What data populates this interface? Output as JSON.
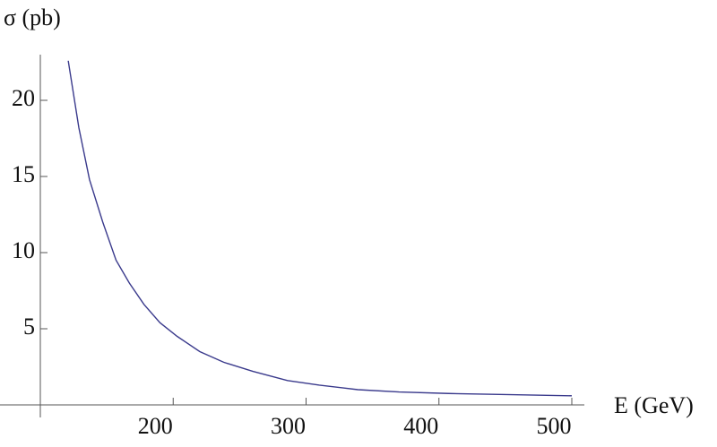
{
  "chart_data": {
    "type": "line",
    "y_label": "σ (pb)",
    "x_label": "E (GeV)",
    "x": [
      121,
      129,
      137,
      147,
      157,
      167,
      178,
      190,
      203,
      220,
      238,
      260,
      286,
      310,
      339,
      370,
      407,
      450,
      500
    ],
    "series": [
      {
        "color": "#3a3a8c",
        "values": [
          22.6,
          18.2,
          14.8,
          12,
          9.5,
          8,
          6.6,
          5.4,
          4.5,
          3.5,
          2.8,
          2.2,
          1.6,
          1.3,
          1.0,
          0.85,
          0.75,
          0.68,
          0.6
        ]
      }
    ],
    "xlim": [
      100,
      500
    ],
    "xticks": [
      200,
      300,
      400,
      500
    ],
    "ylim": [
      0,
      23
    ],
    "yticks": [
      5,
      10,
      15,
      20
    ]
  }
}
